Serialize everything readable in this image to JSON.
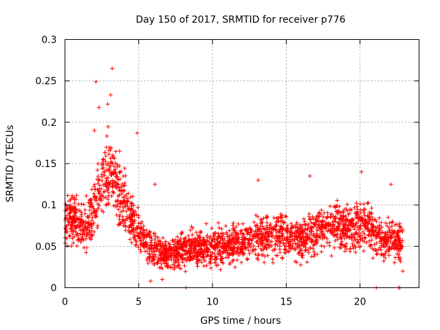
{
  "chart_data": {
    "type": "scatter",
    "title": "Day 150 of 2017, SRMTID for receiver p776",
    "xlabel": "GPS time / hours",
    "ylabel": "SRMTID / TECUs",
    "xlim": [
      0,
      24
    ],
    "ylim": [
      0,
      0.3
    ],
    "xticks": [
      0,
      5,
      10,
      15,
      20
    ],
    "xtick_labels": [
      "0",
      "5",
      "10",
      "15",
      "20"
    ],
    "yticks": [
      0,
      0.05,
      0.1,
      0.15,
      0.2,
      0.25,
      0.3
    ],
    "ytick_labels": [
      "0",
      "0.05",
      "0.1",
      "0.15",
      "0.2",
      "0.25",
      "0.3"
    ],
    "grid": true,
    "marker": "+",
    "color": "#ff0000",
    "series": [
      {
        "name": "SRMTID",
        "profile": [
          [
            0.0,
            0.075,
            0.02
          ],
          [
            0.5,
            0.085,
            0.02
          ],
          [
            1.0,
            0.072,
            0.018
          ],
          [
            1.5,
            0.075,
            0.02
          ],
          [
            2.0,
            0.095,
            0.025
          ],
          [
            2.5,
            0.13,
            0.03
          ],
          [
            3.0,
            0.14,
            0.03
          ],
          [
            3.5,
            0.125,
            0.03
          ],
          [
            4.0,
            0.1,
            0.025
          ],
          [
            4.5,
            0.085,
            0.02
          ],
          [
            5.0,
            0.07,
            0.018
          ],
          [
            5.5,
            0.055,
            0.015
          ],
          [
            6.0,
            0.045,
            0.013
          ],
          [
            7.0,
            0.04,
            0.012
          ],
          [
            8.0,
            0.048,
            0.014
          ],
          [
            9.0,
            0.05,
            0.015
          ],
          [
            10.0,
            0.048,
            0.015
          ],
          [
            11.0,
            0.052,
            0.015
          ],
          [
            12.0,
            0.055,
            0.016
          ],
          [
            13.0,
            0.06,
            0.017
          ],
          [
            14.0,
            0.065,
            0.018
          ],
          [
            15.0,
            0.062,
            0.017
          ],
          [
            16.0,
            0.058,
            0.016
          ],
          [
            17.0,
            0.068,
            0.018
          ],
          [
            18.0,
            0.075,
            0.02
          ],
          [
            19.0,
            0.07,
            0.019
          ],
          [
            20.0,
            0.072,
            0.02
          ],
          [
            20.5,
            0.08,
            0.02
          ],
          [
            21.0,
            0.06,
            0.018
          ],
          [
            22.0,
            0.058,
            0.017
          ],
          [
            22.9,
            0.055,
            0.015
          ]
        ],
        "points_per_hour": 110,
        "outliers": [
          [
            3.2,
            0.265
          ],
          [
            2.1,
            0.249
          ],
          [
            3.1,
            0.233
          ],
          [
            2.9,
            0.222
          ],
          [
            2.3,
            0.218
          ],
          [
            4.9,
            0.187
          ],
          [
            2.0,
            0.19
          ],
          [
            3.7,
            0.165
          ],
          [
            13.1,
            0.13
          ],
          [
            16.6,
            0.135
          ],
          [
            20.1,
            0.14
          ],
          [
            22.1,
            0.125
          ],
          [
            6.1,
            0.125
          ],
          [
            22.9,
            0.02
          ],
          [
            6.6,
            0.01
          ],
          [
            5.8,
            0.008
          ],
          [
            8.2,
            0.0
          ],
          [
            21.1,
            0.0
          ],
          [
            22.6,
            0.0
          ],
          [
            22.7,
            0.0
          ]
        ]
      }
    ]
  }
}
